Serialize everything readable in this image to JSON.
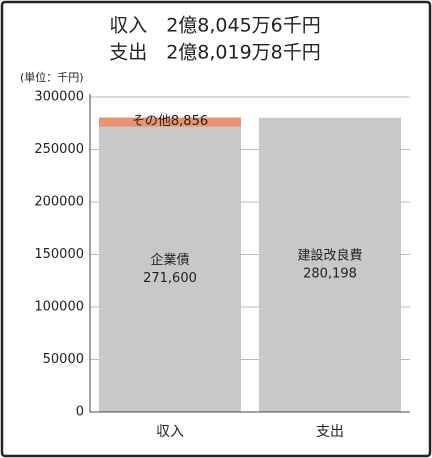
{
  "chart_data": {
    "type": "stacked_bar",
    "title": [
      "収入　2億8,045万6千円",
      "支出　2億8,019万8千円"
    ],
    "ylabel": "(単位：千円)",
    "categories": [
      "収入",
      "支出"
    ],
    "series": [
      {
        "name": "企業債",
        "color": "#c8c8c8",
        "values": [
          271600,
          null
        ],
        "value_labels": [
          "271,600",
          null
        ]
      },
      {
        "name": "その他",
        "color": "#e8956f",
        "values": [
          8856,
          null
        ],
        "value_labels": [
          "8,856",
          null
        ]
      },
      {
        "name": "建設改良費",
        "color": "#c8c8c8",
        "values": [
          null,
          280198
        ],
        "value_labels": [
          null,
          "280,198"
        ]
      }
    ],
    "ylim": [
      0,
      300000
    ],
    "yticks": [
      0,
      50000,
      100000,
      150000,
      200000,
      250000,
      300000
    ],
    "grid": true
  }
}
